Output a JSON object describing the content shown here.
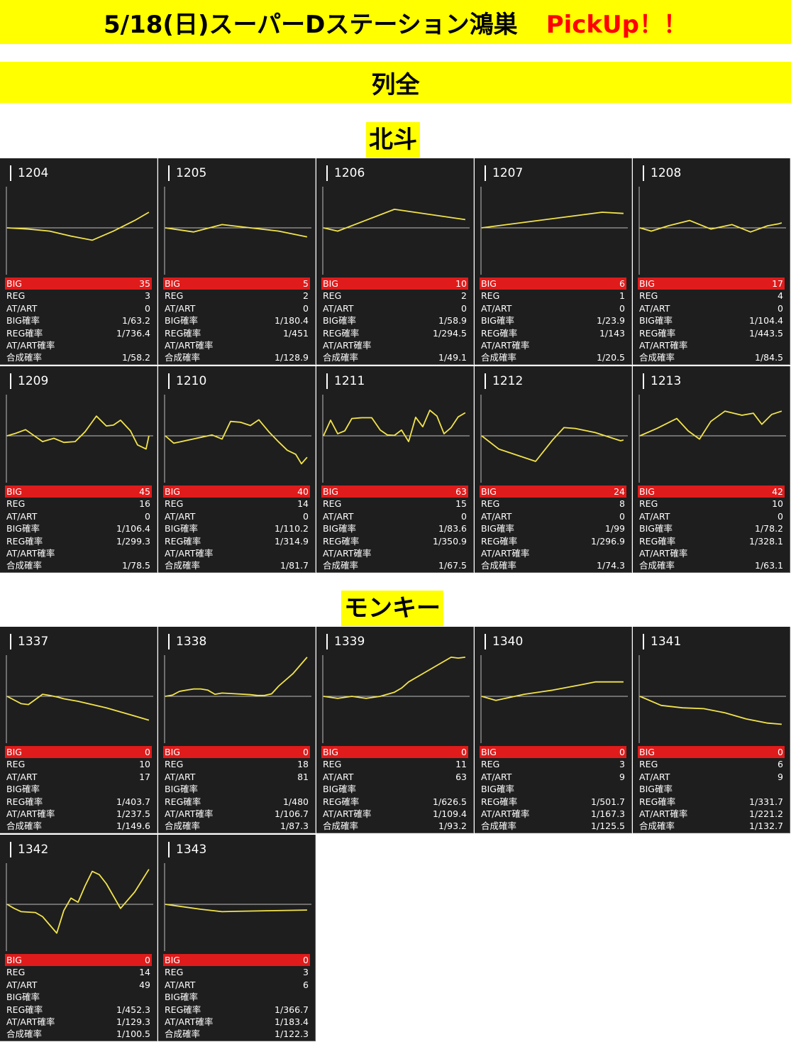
{
  "header": {
    "title": "5/18(日)スーパーDステーション鴻巣",
    "pickup": "PickUp！！",
    "subtitle": "列全"
  },
  "labels": {
    "big": "BIG",
    "reg": "REG",
    "at": "AT/ART",
    "big_rate": "BIG確率",
    "reg_rate": "REG確率",
    "at_rate": "AT/ART確率",
    "total_rate": "合成確率"
  },
  "colors": {
    "banner": "#ffff00",
    "pickup": "#ff0000",
    "cell_bg": "#1e1e1e",
    "big_row": "#e01b1b",
    "line": "#f2e34c"
  },
  "sections": [
    {
      "name": "北斗",
      "machines": [
        {
          "id": "1204",
          "big": "35",
          "reg": "3",
          "at": "0",
          "big_rate": "1/63.2",
          "reg_rate": "1/736.4",
          "at_rate": "",
          "total": "1/58.2"
        },
        {
          "id": "1205",
          "big": "5",
          "reg": "2",
          "at": "0",
          "big_rate": "1/180.4",
          "reg_rate": "1/451",
          "at_rate": "",
          "total": "1/128.9"
        },
        {
          "id": "1206",
          "big": "10",
          "reg": "2",
          "at": "0",
          "big_rate": "1/58.9",
          "reg_rate": "1/294.5",
          "at_rate": "",
          "total": "1/49.1"
        },
        {
          "id": "1207",
          "big": "6",
          "reg": "1",
          "at": "0",
          "big_rate": "1/23.9",
          "reg_rate": "1/143",
          "at_rate": "",
          "total": "1/20.5"
        },
        {
          "id": "1208",
          "big": "17",
          "reg": "4",
          "at": "0",
          "big_rate": "1/104.4",
          "reg_rate": "1/443.5",
          "at_rate": "",
          "total": "1/84.5"
        },
        {
          "id": "1209",
          "big": "45",
          "reg": "16",
          "at": "0",
          "big_rate": "1/106.4",
          "reg_rate": "1/299.3",
          "at_rate": "",
          "total": "1/78.5"
        },
        {
          "id": "1210",
          "big": "40",
          "reg": "14",
          "at": "0",
          "big_rate": "1/110.2",
          "reg_rate": "1/314.9",
          "at_rate": "",
          "total": "1/81.7"
        },
        {
          "id": "1211",
          "big": "63",
          "reg": "15",
          "at": "0",
          "big_rate": "1/83.6",
          "reg_rate": "1/350.9",
          "at_rate": "",
          "total": "1/67.5"
        },
        {
          "id": "1212",
          "big": "24",
          "reg": "8",
          "at": "0",
          "big_rate": "1/99",
          "reg_rate": "1/296.9",
          "at_rate": "",
          "total": "1/74.3"
        },
        {
          "id": "1213",
          "big": "42",
          "reg": "10",
          "at": "0",
          "big_rate": "1/78.2",
          "reg_rate": "1/328.1",
          "at_rate": "",
          "total": "1/63.1"
        }
      ]
    },
    {
      "name": "モンキー",
      "machines": [
        {
          "id": "1337",
          "big": "0",
          "reg": "10",
          "at": "17",
          "big_rate": "",
          "reg_rate": "1/403.7",
          "at_rate": "1/237.5",
          "total": "1/149.6"
        },
        {
          "id": "1338",
          "big": "0",
          "reg": "18",
          "at": "81",
          "big_rate": "",
          "reg_rate": "1/480",
          "at_rate": "1/106.7",
          "total": "1/87.3"
        },
        {
          "id": "1339",
          "big": "0",
          "reg": "11",
          "at": "63",
          "big_rate": "",
          "reg_rate": "1/626.5",
          "at_rate": "1/109.4",
          "total": "1/93.2"
        },
        {
          "id": "1340",
          "big": "0",
          "reg": "3",
          "at": "9",
          "big_rate": "",
          "reg_rate": "1/501.7",
          "at_rate": "1/167.3",
          "total": "1/125.5"
        },
        {
          "id": "1341",
          "big": "0",
          "reg": "6",
          "at": "9",
          "big_rate": "",
          "reg_rate": "1/331.7",
          "at_rate": "1/221.2",
          "total": "1/132.7"
        },
        {
          "id": "1342",
          "big": "0",
          "reg": "14",
          "at": "49",
          "big_rate": "",
          "reg_rate": "1/452.3",
          "at_rate": "1/129.3",
          "total": "1/100.5"
        },
        {
          "id": "1343",
          "big": "0",
          "reg": "3",
          "at": "6",
          "big_rate": "",
          "reg_rate": "1/366.7",
          "at_rate": "1/183.4",
          "total": "1/122.3"
        }
      ]
    }
  ],
  "chart_data": [
    {
      "type": "line",
      "title": "1204",
      "x": [
        0,
        0.15,
        0.3,
        0.45,
        0.6,
        0.75,
        0.9,
        1.0
      ],
      "y": [
        0,
        -0.03,
        -0.08,
        -0.2,
        -0.3,
        -0.08,
        0.18,
        0.38
      ]
    },
    {
      "type": "line",
      "title": "1205",
      "x": [
        0,
        0.2,
        0.4,
        0.6,
        0.8,
        1.0
      ],
      "y": [
        0,
        -0.1,
        0.08,
        0,
        -0.08,
        -0.22
      ]
    },
    {
      "type": "line",
      "title": "1206",
      "x": [
        0,
        0.1,
        0.5,
        1.0
      ],
      "y": [
        0,
        -0.08,
        0.45,
        0.2
      ]
    },
    {
      "type": "line",
      "title": "1207",
      "x": [
        0,
        0.85,
        1.0
      ],
      "y": [
        0,
        0.38,
        0.35
      ]
    },
    {
      "type": "line",
      "title": "1208",
      "x": [
        0,
        0.08,
        0.2,
        0.35,
        0.5,
        0.65,
        0.78,
        0.9,
        0.98,
        1.0
      ],
      "y": [
        0,
        -0.08,
        0.05,
        0.18,
        -0.03,
        0.08,
        -0.1,
        0.05,
        0.1,
        0.12
      ]
    },
    {
      "type": "line",
      "title": "1209",
      "x": [
        0,
        0.06,
        0.13,
        0.25,
        0.33,
        0.4,
        0.48,
        0.55,
        0.63,
        0.7,
        0.75,
        0.8,
        0.87,
        0.92,
        0.98,
        1.0
      ],
      "y": [
        0,
        0.06,
        0.15,
        -0.14,
        -0.06,
        -0.16,
        -0.14,
        0.1,
        0.48,
        0.24,
        0.26,
        0.38,
        0.12,
        -0.22,
        -0.32,
        0
      ]
    },
    {
      "type": "line",
      "title": "1210",
      "x": [
        0,
        0.06,
        0.33,
        0.4,
        0.46,
        0.53,
        0.6,
        0.66,
        0.73,
        0.8,
        0.86,
        0.92,
        0.96,
        1.0
      ],
      "y": [
        0,
        -0.18,
        0.02,
        -0.08,
        0.35,
        0.33,
        0.25,
        0.39,
        0.1,
        -0.15,
        -0.35,
        -0.45,
        -0.68,
        -0.52
      ]
    },
    {
      "type": "line",
      "title": "1211",
      "x": [
        0,
        0.05,
        0.1,
        0.15,
        0.2,
        0.27,
        0.34,
        0.4,
        0.45,
        0.5,
        0.55,
        0.6,
        0.65,
        0.7,
        0.75,
        0.8,
        0.85,
        0.9,
        0.95,
        1.0
      ],
      "y": [
        0,
        0.38,
        0.05,
        0.12,
        0.42,
        0.44,
        0.44,
        0.14,
        0.02,
        0.01,
        0.14,
        -0.14,
        0.45,
        0.22,
        0.62,
        0.48,
        0.05,
        0.2,
        0.46,
        0.56
      ]
    },
    {
      "type": "line",
      "title": "1212",
      "x": [
        0,
        0.12,
        0.38,
        0.5,
        0.58,
        0.66,
        0.8,
        0.98,
        1.0
      ],
      "y": [
        0,
        -0.32,
        -0.62,
        -0.1,
        0.2,
        0.18,
        0.08,
        -0.12,
        -0.1
      ]
    },
    {
      "type": "line",
      "title": "1213",
      "x": [
        0,
        0.12,
        0.26,
        0.34,
        0.42,
        0.5,
        0.6,
        0.72,
        0.8,
        0.86,
        0.93,
        1.0
      ],
      "y": [
        0,
        0.18,
        0.42,
        0.12,
        -0.08,
        0.35,
        0.6,
        0.5,
        0.55,
        0.28,
        0.52,
        0.6
      ]
    },
    {
      "type": "line",
      "title": "1337",
      "x": [
        0,
        0.1,
        0.15,
        0.25,
        0.3,
        0.36,
        0.4,
        0.5,
        0.6,
        0.7,
        0.8,
        0.9,
        1.0
      ],
      "y": [
        0,
        -0.18,
        -0.2,
        0.05,
        0.02,
        -0.02,
        -0.06,
        -0.12,
        -0.2,
        -0.28,
        -0.38,
        -0.48,
        -0.58
      ]
    },
    {
      "type": "line",
      "title": "1338",
      "x": [
        0,
        0.05,
        0.1,
        0.15,
        0.2,
        0.25,
        0.3,
        0.35,
        0.4,
        0.5,
        0.6,
        0.65,
        0.7,
        0.75,
        0.8,
        0.9,
        1.0
      ],
      "y": [
        0,
        0.03,
        0.12,
        0.15,
        0.18,
        0.18,
        0.15,
        0.05,
        0.08,
        0.06,
        0.04,
        0.02,
        0.02,
        0.06,
        0.25,
        0.55,
        0.95
      ]
    },
    {
      "type": "line",
      "title": "1339",
      "x": [
        0,
        0.1,
        0.2,
        0.3,
        0.4,
        0.5,
        0.55,
        0.6,
        0.7,
        0.8,
        0.9,
        0.95,
        1.0
      ],
      "y": [
        0,
        -0.05,
        0,
        -0.05,
        0,
        0.1,
        0.2,
        0.35,
        0.55,
        0.75,
        0.95,
        0.93,
        0.95
      ]
    },
    {
      "type": "line",
      "title": "1340",
      "x": [
        0,
        0.1,
        0.3,
        0.5,
        0.7,
        0.8,
        0.9,
        1.0
      ],
      "y": [
        0,
        -0.1,
        0.05,
        0.15,
        0.28,
        0.35,
        0.35,
        0.35
      ]
    },
    {
      "type": "line",
      "title": "1341",
      "x": [
        0,
        0.15,
        0.3,
        0.45,
        0.6,
        0.75,
        0.9,
        1.0
      ],
      "y": [
        0,
        -0.22,
        -0.28,
        -0.3,
        -0.4,
        -0.55,
        -0.65,
        -0.68
      ]
    },
    {
      "type": "line",
      "title": "1342",
      "x": [
        0,
        0.05,
        0.1,
        0.2,
        0.25,
        0.3,
        0.35,
        0.4,
        0.45,
        0.5,
        0.55,
        0.6,
        0.65,
        0.7,
        0.8,
        0.9,
        1.0
      ],
      "y": [
        0,
        -0.1,
        -0.18,
        -0.2,
        -0.3,
        -0.5,
        -0.7,
        -0.15,
        0.15,
        0.05,
        0.45,
        0.8,
        0.72,
        0.5,
        -0.1,
        0.3,
        0.85
      ]
    },
    {
      "type": "line",
      "title": "1343",
      "x": [
        0,
        0.25,
        0.4,
        0.5,
        1.0
      ],
      "y": [
        0,
        -0.12,
        -0.18,
        -0.17,
        -0.14
      ]
    }
  ]
}
